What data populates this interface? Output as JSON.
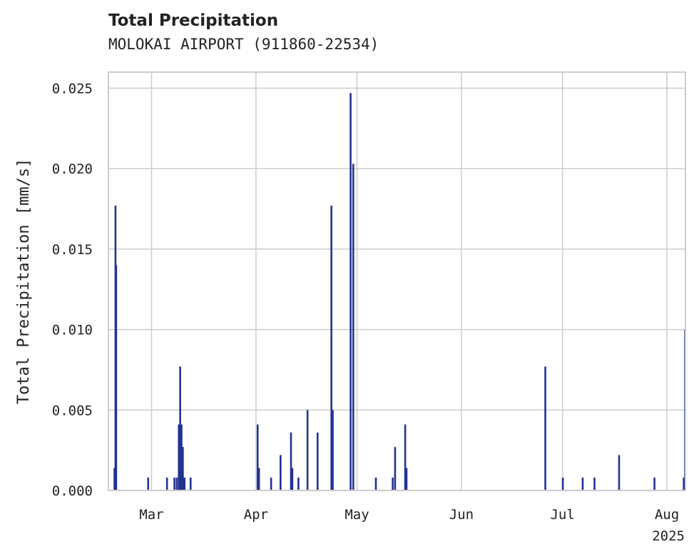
{
  "header": {
    "title": "Total Precipitation",
    "subtitle": "MOLOKAI AIRPORT (911860-22534)"
  },
  "chart_data": {
    "type": "bar",
    "title": "Total Precipitation",
    "subtitle": "MOLOKAI AIRPORT (911860-22534)",
    "xlabel": "",
    "ylabel": "Total Precipitation [mm/s]",
    "year_label": "2025",
    "ylim": [
      0,
      0.026
    ],
    "xlim": [
      -0.8,
      170.5
    ],
    "grid": true,
    "bar_color": "#233391",
    "y_ticks": [
      {
        "value": 0.0,
        "label": "0.000"
      },
      {
        "value": 0.005,
        "label": "0.005"
      },
      {
        "value": 0.01,
        "label": "0.010"
      },
      {
        "value": 0.015,
        "label": "0.015"
      },
      {
        "value": 0.02,
        "label": "0.020"
      },
      {
        "value": 0.025,
        "label": "0.025"
      }
    ],
    "x_ticks": [
      {
        "day": 12,
        "label": "Mar"
      },
      {
        "day": 43,
        "label": "Apr"
      },
      {
        "day": 73,
        "label": "May"
      },
      {
        "day": 104,
        "label": "Jun"
      },
      {
        "day": 134,
        "label": "Jul"
      },
      {
        "day": 165,
        "label": "Aug"
      }
    ],
    "x_unit": "days since 2025-02-17",
    "bars": [
      {
        "day": 1.0,
        "value": 0.0014
      },
      {
        "day": 1.3,
        "value": 0.0177
      },
      {
        "day": 1.5,
        "value": 0.014
      },
      {
        "day": 11.0,
        "value": 0.0008
      },
      {
        "day": 16.6,
        "value": 0.0008
      },
      {
        "day": 18.8,
        "value": 0.0008
      },
      {
        "day": 19.5,
        "value": 0.0008
      },
      {
        "day": 20.1,
        "value": 0.0041
      },
      {
        "day": 20.5,
        "value": 0.0077
      },
      {
        "day": 20.9,
        "value": 0.0041
      },
      {
        "day": 21.3,
        "value": 0.0027
      },
      {
        "day": 21.8,
        "value": 0.0008
      },
      {
        "day": 23.6,
        "value": 0.0008
      },
      {
        "day": 43.5,
        "value": 0.0041
      },
      {
        "day": 43.9,
        "value": 0.0014
      },
      {
        "day": 47.5,
        "value": 0.0008
      },
      {
        "day": 50.3,
        "value": 0.0022
      },
      {
        "day": 53.4,
        "value": 0.0036
      },
      {
        "day": 53.8,
        "value": 0.0014
      },
      {
        "day": 55.6,
        "value": 0.0008
      },
      {
        "day": 58.3,
        "value": 0.005
      },
      {
        "day": 61.3,
        "value": 0.0036
      },
      {
        "day": 65.4,
        "value": 0.0177
      },
      {
        "day": 65.8,
        "value": 0.005
      },
      {
        "day": 71.1,
        "value": 0.0247
      },
      {
        "day": 71.9,
        "value": 0.0203
      },
      {
        "day": 78.6,
        "value": 0.0008
      },
      {
        "day": 83.6,
        "value": 0.0008
      },
      {
        "day": 84.3,
        "value": 0.0027
      },
      {
        "day": 87.3,
        "value": 0.0041
      },
      {
        "day": 87.7,
        "value": 0.0014
      },
      {
        "day": 128.9,
        "value": 0.0077
      },
      {
        "day": 134.1,
        "value": 0.0008
      },
      {
        "day": 140.0,
        "value": 0.0008
      },
      {
        "day": 143.5,
        "value": 0.0008
      },
      {
        "day": 150.8,
        "value": 0.0022
      },
      {
        "day": 161.3,
        "value": 0.0008
      },
      {
        "day": 170.0,
        "value": 0.0008
      },
      {
        "day": 170.4,
        "value": 0.01
      }
    ]
  }
}
